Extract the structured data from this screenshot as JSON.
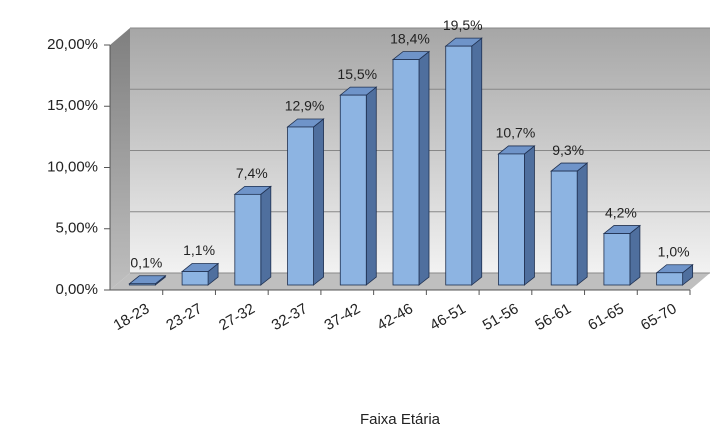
{
  "chart_data": {
    "type": "bar3d",
    "x_label": "Faixa Etária",
    "categories": [
      "18-23",
      "23-27",
      "27-32",
      "32-37",
      "37-42",
      "42-46",
      "46-51",
      "51-56",
      "56-61",
      "61-65",
      "65-70"
    ],
    "values": [
      0.1,
      1.1,
      7.4,
      12.9,
      15.5,
      18.4,
      19.5,
      10.7,
      9.3,
      4.2,
      1.0
    ],
    "value_labels": [
      "0,1%",
      "1,1%",
      "7,4%",
      "12,9%",
      "15,5%",
      "18,4%",
      "19,5%",
      "10,7%",
      "9,3%",
      "4,2%",
      "1,0%"
    ],
    "color": "#8db4e2",
    "ylim": [
      0,
      20
    ],
    "yticks": [
      {
        "value": 0,
        "label": "0,00%"
      },
      {
        "value": 5,
        "label": "5,00%"
      },
      {
        "value": 10,
        "label": "10,00%"
      },
      {
        "value": 15,
        "label": "15,00%"
      },
      {
        "value": 20,
        "label": "20,00%"
      }
    ],
    "grid": true
  }
}
